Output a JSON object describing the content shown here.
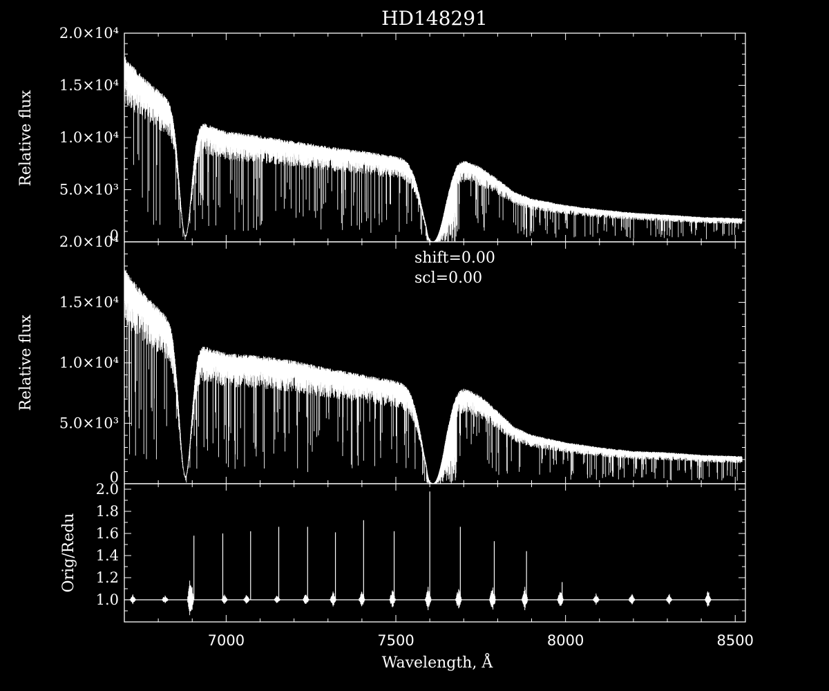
{
  "chart_data": [
    {
      "type": "line",
      "panel": "top",
      "title": "HD148291",
      "ylabel": "Relative flux",
      "xlim": [
        6700,
        8530
      ],
      "ylim": [
        0,
        20000
      ],
      "ytick_labels": [
        "0",
        "5.0×10³",
        "1.0×10⁴",
        "1.5×10⁴",
        "2.0×10⁴"
      ],
      "ytick_values": [
        0,
        5000,
        10000,
        15000,
        20000
      ],
      "spectrum_anchors": {
        "x": [
          6700,
          6720,
          6750,
          6800,
          6830,
          6860,
          6880,
          6900,
          6950,
          7000,
          7100,
          7200,
          7300,
          7400,
          7500,
          7590,
          7600,
          7620,
          7650,
          7680,
          7700,
          7750,
          7800,
          7850,
          7900,
          8000,
          8100,
          8200,
          8300,
          8400,
          8500,
          8520
        ],
        "y": [
          17200,
          16400,
          15400,
          14000,
          13200,
          12400,
          12000,
          11500,
          10800,
          10200,
          9800,
          9300,
          8800,
          8400,
          7900,
          7600,
          2500,
          5800,
          7000,
          7700,
          7600,
          6900,
          5800,
          4600,
          4000,
          3400,
          3000,
          2700,
          2500,
          2300,
          2200,
          2200
        ]
      },
      "absorption_bands": [
        {
          "center": 6880,
          "width": 25,
          "depth": 0.95
        },
        {
          "center": 7610,
          "width": 45,
          "depth": 0.99
        }
      ]
    },
    {
      "type": "line",
      "panel": "middle",
      "ylabel": "Relative flux",
      "xlim": [
        6700,
        8530
      ],
      "ylim": [
        0,
        20000
      ],
      "ytick_labels": [
        "0",
        "5.0×10³",
        "1.0×10⁴",
        "1.5×10⁴",
        "2.0×10⁴"
      ],
      "ytick_values": [
        0,
        5000,
        10000,
        15000,
        20000
      ],
      "annotations": [
        "shift=0.00",
        "scl=0.00"
      ],
      "spectrum_anchors": {
        "x": [
          6700,
          6720,
          6750,
          6800,
          6830,
          6860,
          6880,
          6900,
          6950,
          7000,
          7100,
          7200,
          7300,
          7400,
          7500,
          7590,
          7600,
          7620,
          7650,
          7680,
          7700,
          7750,
          7800,
          7850,
          7900,
          8000,
          8100,
          8200,
          8300,
          8400,
          8500,
          8520
        ],
        "y": [
          17200,
          16400,
          15400,
          14000,
          13200,
          12400,
          12000,
          11500,
          10800,
          10400,
          10200,
          9800,
          9200,
          8700,
          8200,
          7900,
          2500,
          5800,
          7200,
          7800,
          7700,
          7000,
          5800,
          4500,
          3900,
          3300,
          2900,
          2600,
          2500,
          2300,
          2200,
          2200
        ]
      },
      "absorption_bands": [
        {
          "center": 6880,
          "width": 25,
          "depth": 0.95
        },
        {
          "center": 7610,
          "width": 45,
          "depth": 0.99
        }
      ]
    },
    {
      "type": "line",
      "panel": "bottom",
      "ylabel": "Orig/Redu",
      "xlabel": "Wavelength, Å",
      "xlim": [
        6700,
        8530
      ],
      "ylim": [
        0.8,
        2.05
      ],
      "xtick_labels": [
        "7000",
        "7500",
        "8000",
        "8500"
      ],
      "xtick_values": [
        7000,
        7500,
        8000,
        8500
      ],
      "ytick_labels": [
        "1.0",
        "1.2",
        "1.4",
        "1.6",
        "1.8",
        "2.0"
      ],
      "ytick_values": [
        1.0,
        1.2,
        1.4,
        1.6,
        1.8,
        2.0
      ],
      "baseline": 1.0,
      "spikes": {
        "x": [
          6905,
          6990,
          7072,
          7155,
          7240,
          7322,
          7405,
          7495,
          7600,
          7690,
          7790,
          7885,
          7990
        ],
        "y": [
          1.58,
          1.6,
          1.62,
          1.66,
          1.66,
          1.61,
          1.72,
          1.62,
          1.98,
          1.66,
          1.53,
          1.44,
          1.16
        ]
      },
      "blips": {
        "x": [
          6725,
          6820,
          6895,
          6995,
          7060,
          7150,
          7235,
          7315,
          7400,
          7490,
          7595,
          7685,
          7785,
          7880,
          7985,
          8090,
          8195,
          8305,
          8420
        ],
        "amp": [
          0.05,
          0.05,
          0.24,
          0.05,
          0.05,
          0.05,
          0.06,
          0.08,
          0.09,
          0.1,
          0.12,
          0.12,
          0.13,
          0.12,
          0.1,
          0.06,
          0.06,
          0.06,
          0.1
        ]
      }
    }
  ]
}
